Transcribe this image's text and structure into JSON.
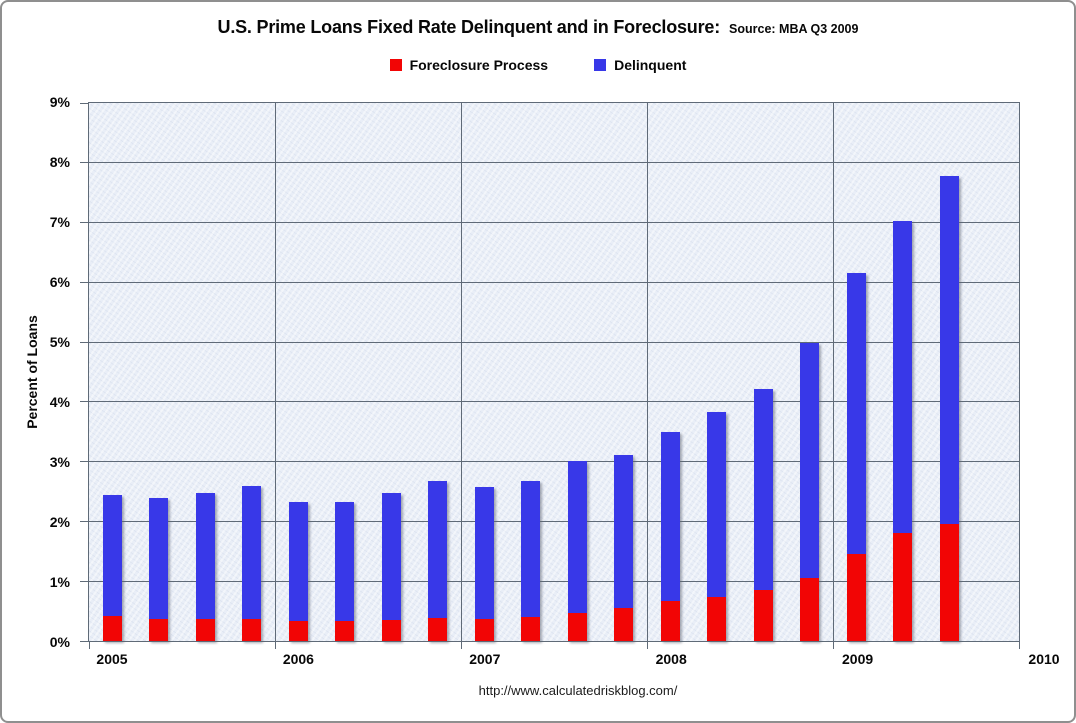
{
  "header": {
    "title": "U.S. Prime Loans Fixed Rate Delinquent and in Foreclosure:",
    "source": "Source: MBA Q3 2009"
  },
  "legend": {
    "items": [
      {
        "label": "Foreclosure Process",
        "color": "#f20505"
      },
      {
        "label": "Delinquent",
        "color": "#3838e8"
      }
    ]
  },
  "axes": {
    "y_title": "Percent of Loans",
    "y_ticks": [
      "0%",
      "1%",
      "2%",
      "3%",
      "4%",
      "5%",
      "6%",
      "7%",
      "8%",
      "9%"
    ],
    "x_ticks": [
      "2005",
      "2006",
      "2007",
      "2008",
      "2009",
      "2010"
    ]
  },
  "footer": {
    "url": "http://www.calculatedriskblog.com/"
  },
  "colors": {
    "foreclosure": "#f20505",
    "delinquent": "#3838e8",
    "gridline": "#5f6a77",
    "plot_background": "#e9eef7"
  },
  "chart_data": {
    "type": "bar",
    "stacked": true,
    "title": "U.S. Prime Loans Fixed Rate Delinquent and in Foreclosure: Source: MBA Q3 2009",
    "xlabel": "",
    "ylabel": "Percent of Loans",
    "ylim": [
      0,
      9
    ],
    "y_tick_step_percent": 1,
    "grid": true,
    "legend_position": "top",
    "x_axis_year_ticks": [
      2005,
      2006,
      2007,
      2008,
      2009,
      2010
    ],
    "quarters_per_year": 4,
    "categories": [
      "2005 Q1",
      "2005 Q2",
      "2005 Q3",
      "2005 Q4",
      "2006 Q1",
      "2006 Q2",
      "2006 Q3",
      "2006 Q4",
      "2007 Q1",
      "2007 Q2",
      "2007 Q3",
      "2007 Q4",
      "2008 Q1",
      "2008 Q2",
      "2008 Q3",
      "2008 Q4",
      "2009 Q1",
      "2009 Q2",
      "2009 Q3"
    ],
    "series": [
      {
        "name": "Foreclosure Process",
        "color": "#f20505",
        "values": [
          0.42,
          0.36,
          0.36,
          0.37,
          0.33,
          0.33,
          0.35,
          0.39,
          0.36,
          0.4,
          0.47,
          0.55,
          0.67,
          0.74,
          0.85,
          1.05,
          1.45,
          1.81,
          1.96
        ]
      },
      {
        "name": "Delinquent",
        "color": "#3838e8",
        "values": [
          2.02,
          2.04,
          2.12,
          2.22,
          2.0,
          2.0,
          2.12,
          2.28,
          2.21,
          2.27,
          2.54,
          2.57,
          2.82,
          3.09,
          3.37,
          3.93,
          4.7,
          5.22,
          5.82
        ]
      }
    ],
    "stacked_totals": [
      2.44,
      2.4,
      2.48,
      2.59,
      2.33,
      2.33,
      2.47,
      2.67,
      2.57,
      2.67,
      3.01,
      3.12,
      3.49,
      3.83,
      4.22,
      4.98,
      6.15,
      7.03,
      7.78
    ]
  }
}
